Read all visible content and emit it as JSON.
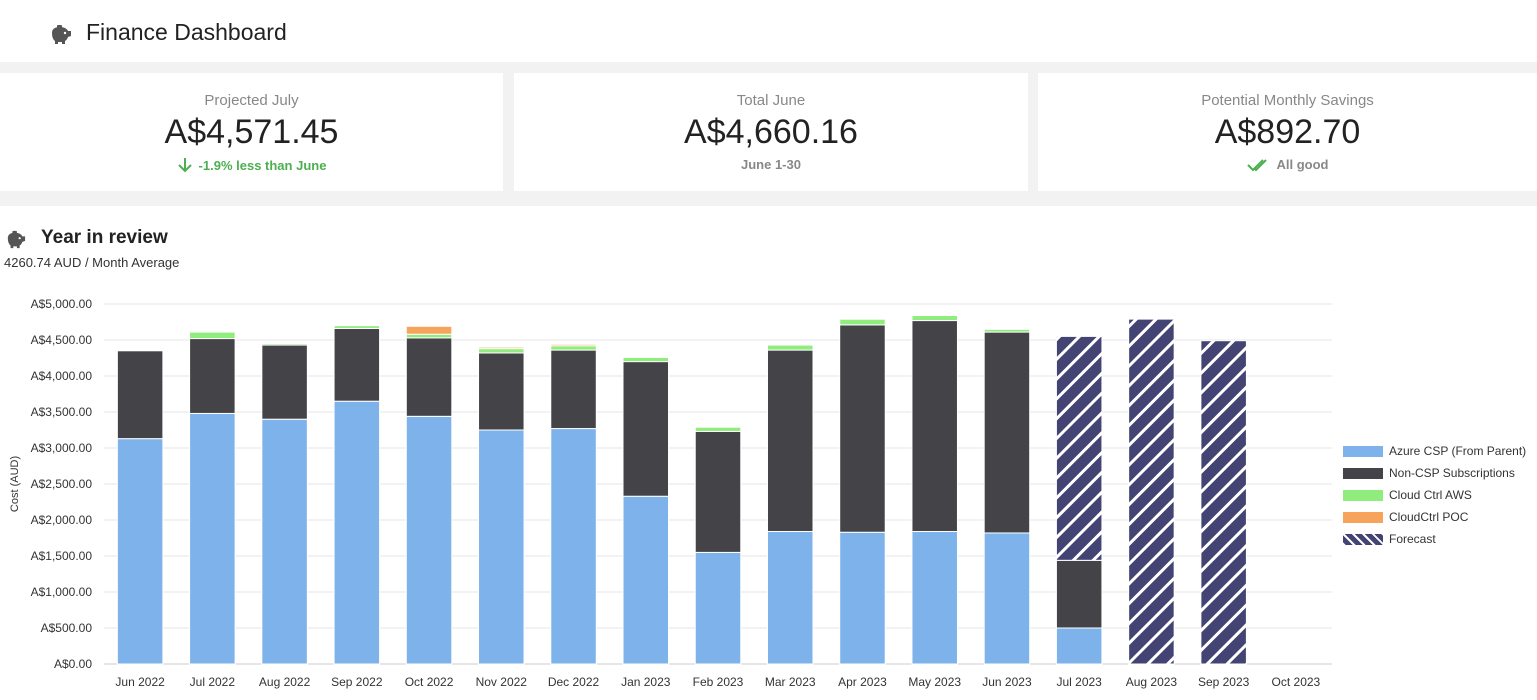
{
  "header": {
    "title": "Finance Dashboard",
    "icon": "piggy-bank-icon"
  },
  "cards": [
    {
      "label": "Projected July",
      "value": "A$4,571.45",
      "sub": "-1.9% less than June",
      "icon": "arrow-down-icon",
      "tone": "green"
    },
    {
      "label": "Total June",
      "value": "A$4,660.16",
      "sub": "June 1-30",
      "tone": "gray"
    },
    {
      "label": "Potential Monthly Savings",
      "value": "A$892.70",
      "sub": "All good",
      "icon": "double-check-icon",
      "tone": "gray"
    }
  ],
  "review": {
    "title": "Year in review",
    "subtitle": "4260.74 AUD / Month Average",
    "icon": "piggy-bank-icon"
  },
  "chart_data": {
    "type": "bar",
    "stacked": true,
    "ylabel": "Cost (AUD)",
    "ylim": [
      0,
      5000
    ],
    "yticks": [
      "A$0.00",
      "A$500.00",
      "A$1,000.00",
      "A$1,500.00",
      "A$2,000.00",
      "A$2,500.00",
      "A$3,000.00",
      "A$3,500.00",
      "A$4,000.00",
      "A$4,500.00",
      "A$5,000.00"
    ],
    "grid": true,
    "legend_position": "right",
    "categories": [
      "Jun 2022",
      "Jul 2022",
      "Aug 2022",
      "Sep 2022",
      "Oct 2022",
      "Nov 2022",
      "Dec 2022",
      "Jan 2023",
      "Feb 2023",
      "Mar 2023",
      "Apr 2023",
      "May 2023",
      "Jun 2023",
      "Jul 2023",
      "Aug 2023",
      "Sep 2023",
      "Oct 2023"
    ],
    "series": [
      {
        "name": "Azure CSP (From Parent)",
        "color": "#7db3ea",
        "values": [
          3130,
          3480,
          3400,
          3650,
          3440,
          3250,
          3270,
          2330,
          1550,
          1840,
          1830,
          1840,
          1820,
          500,
          0,
          0,
          0
        ]
      },
      {
        "name": "Non-CSP Subscriptions",
        "color": "#434348",
        "values": [
          1220,
          1040,
          1030,
          1010,
          1090,
          1070,
          1090,
          1870,
          1680,
          2520,
          2880,
          2930,
          2790,
          940,
          0,
          0,
          0
        ]
      },
      {
        "name": "Cloud Ctrl AWS",
        "color": "#90ed7d",
        "values": [
          0,
          90,
          20,
          40,
          50,
          60,
          60,
          60,
          60,
          70,
          80,
          70,
          40,
          0,
          0,
          0,
          0
        ]
      },
      {
        "name": "CloudCtrl POC",
        "color": "#f7a35c",
        "values": [
          0,
          0,
          0,
          10,
          110,
          20,
          20,
          10,
          10,
          10,
          10,
          10,
          10,
          0,
          0,
          0,
          0
        ]
      },
      {
        "name": "Forecast",
        "color": "#434374",
        "pattern": "hatched",
        "values": [
          0,
          0,
          0,
          0,
          0,
          0,
          0,
          0,
          0,
          0,
          0,
          0,
          0,
          3110,
          4790,
          4490,
          0
        ]
      }
    ]
  }
}
